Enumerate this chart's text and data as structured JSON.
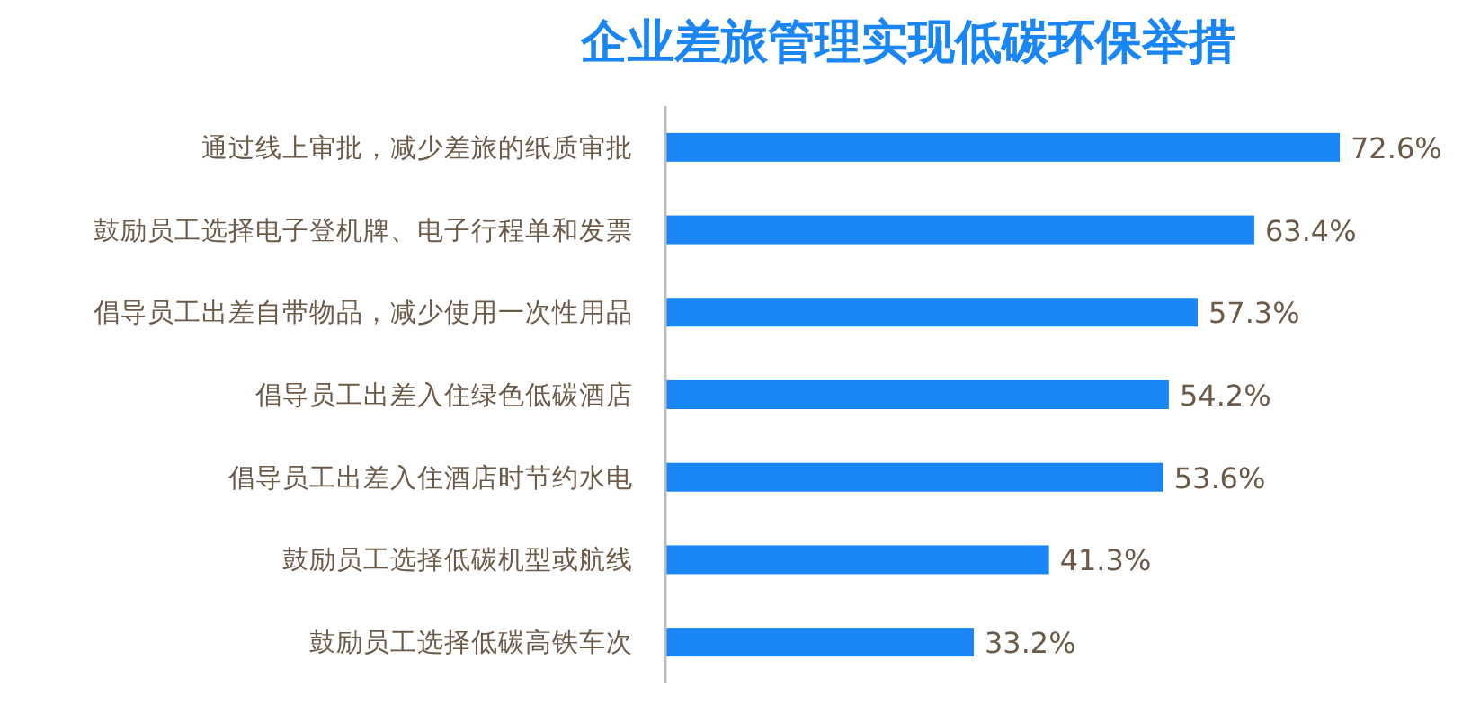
{
  "chart_data": {
    "type": "bar",
    "orientation": "horizontal",
    "title": "企业差旅管理实现低碳环保举措",
    "categories": [
      "通过线上审批，减少差旅的纸质审批",
      "鼓励员工选择电子登机牌、电子行程单和发票",
      "倡导员工出差自带物品，减少使用一次性用品",
      "倡导员工出差入住绿色低碳酒店",
      "倡导员工出差入住酒店时节约水电",
      "鼓励员工选择低碳机型或航线",
      "鼓励员工选择低碳高铁车次"
    ],
    "values": [
      72.6,
      63.4,
      57.3,
      54.2,
      53.6,
      41.3,
      33.2
    ],
    "value_labels": [
      "72.6%",
      "63.4%",
      "57.3%",
      "54.2%",
      "53.6%",
      "41.3%",
      "33.2%"
    ],
    "color": "#1a86f5",
    "tick_labels": "y"
  }
}
